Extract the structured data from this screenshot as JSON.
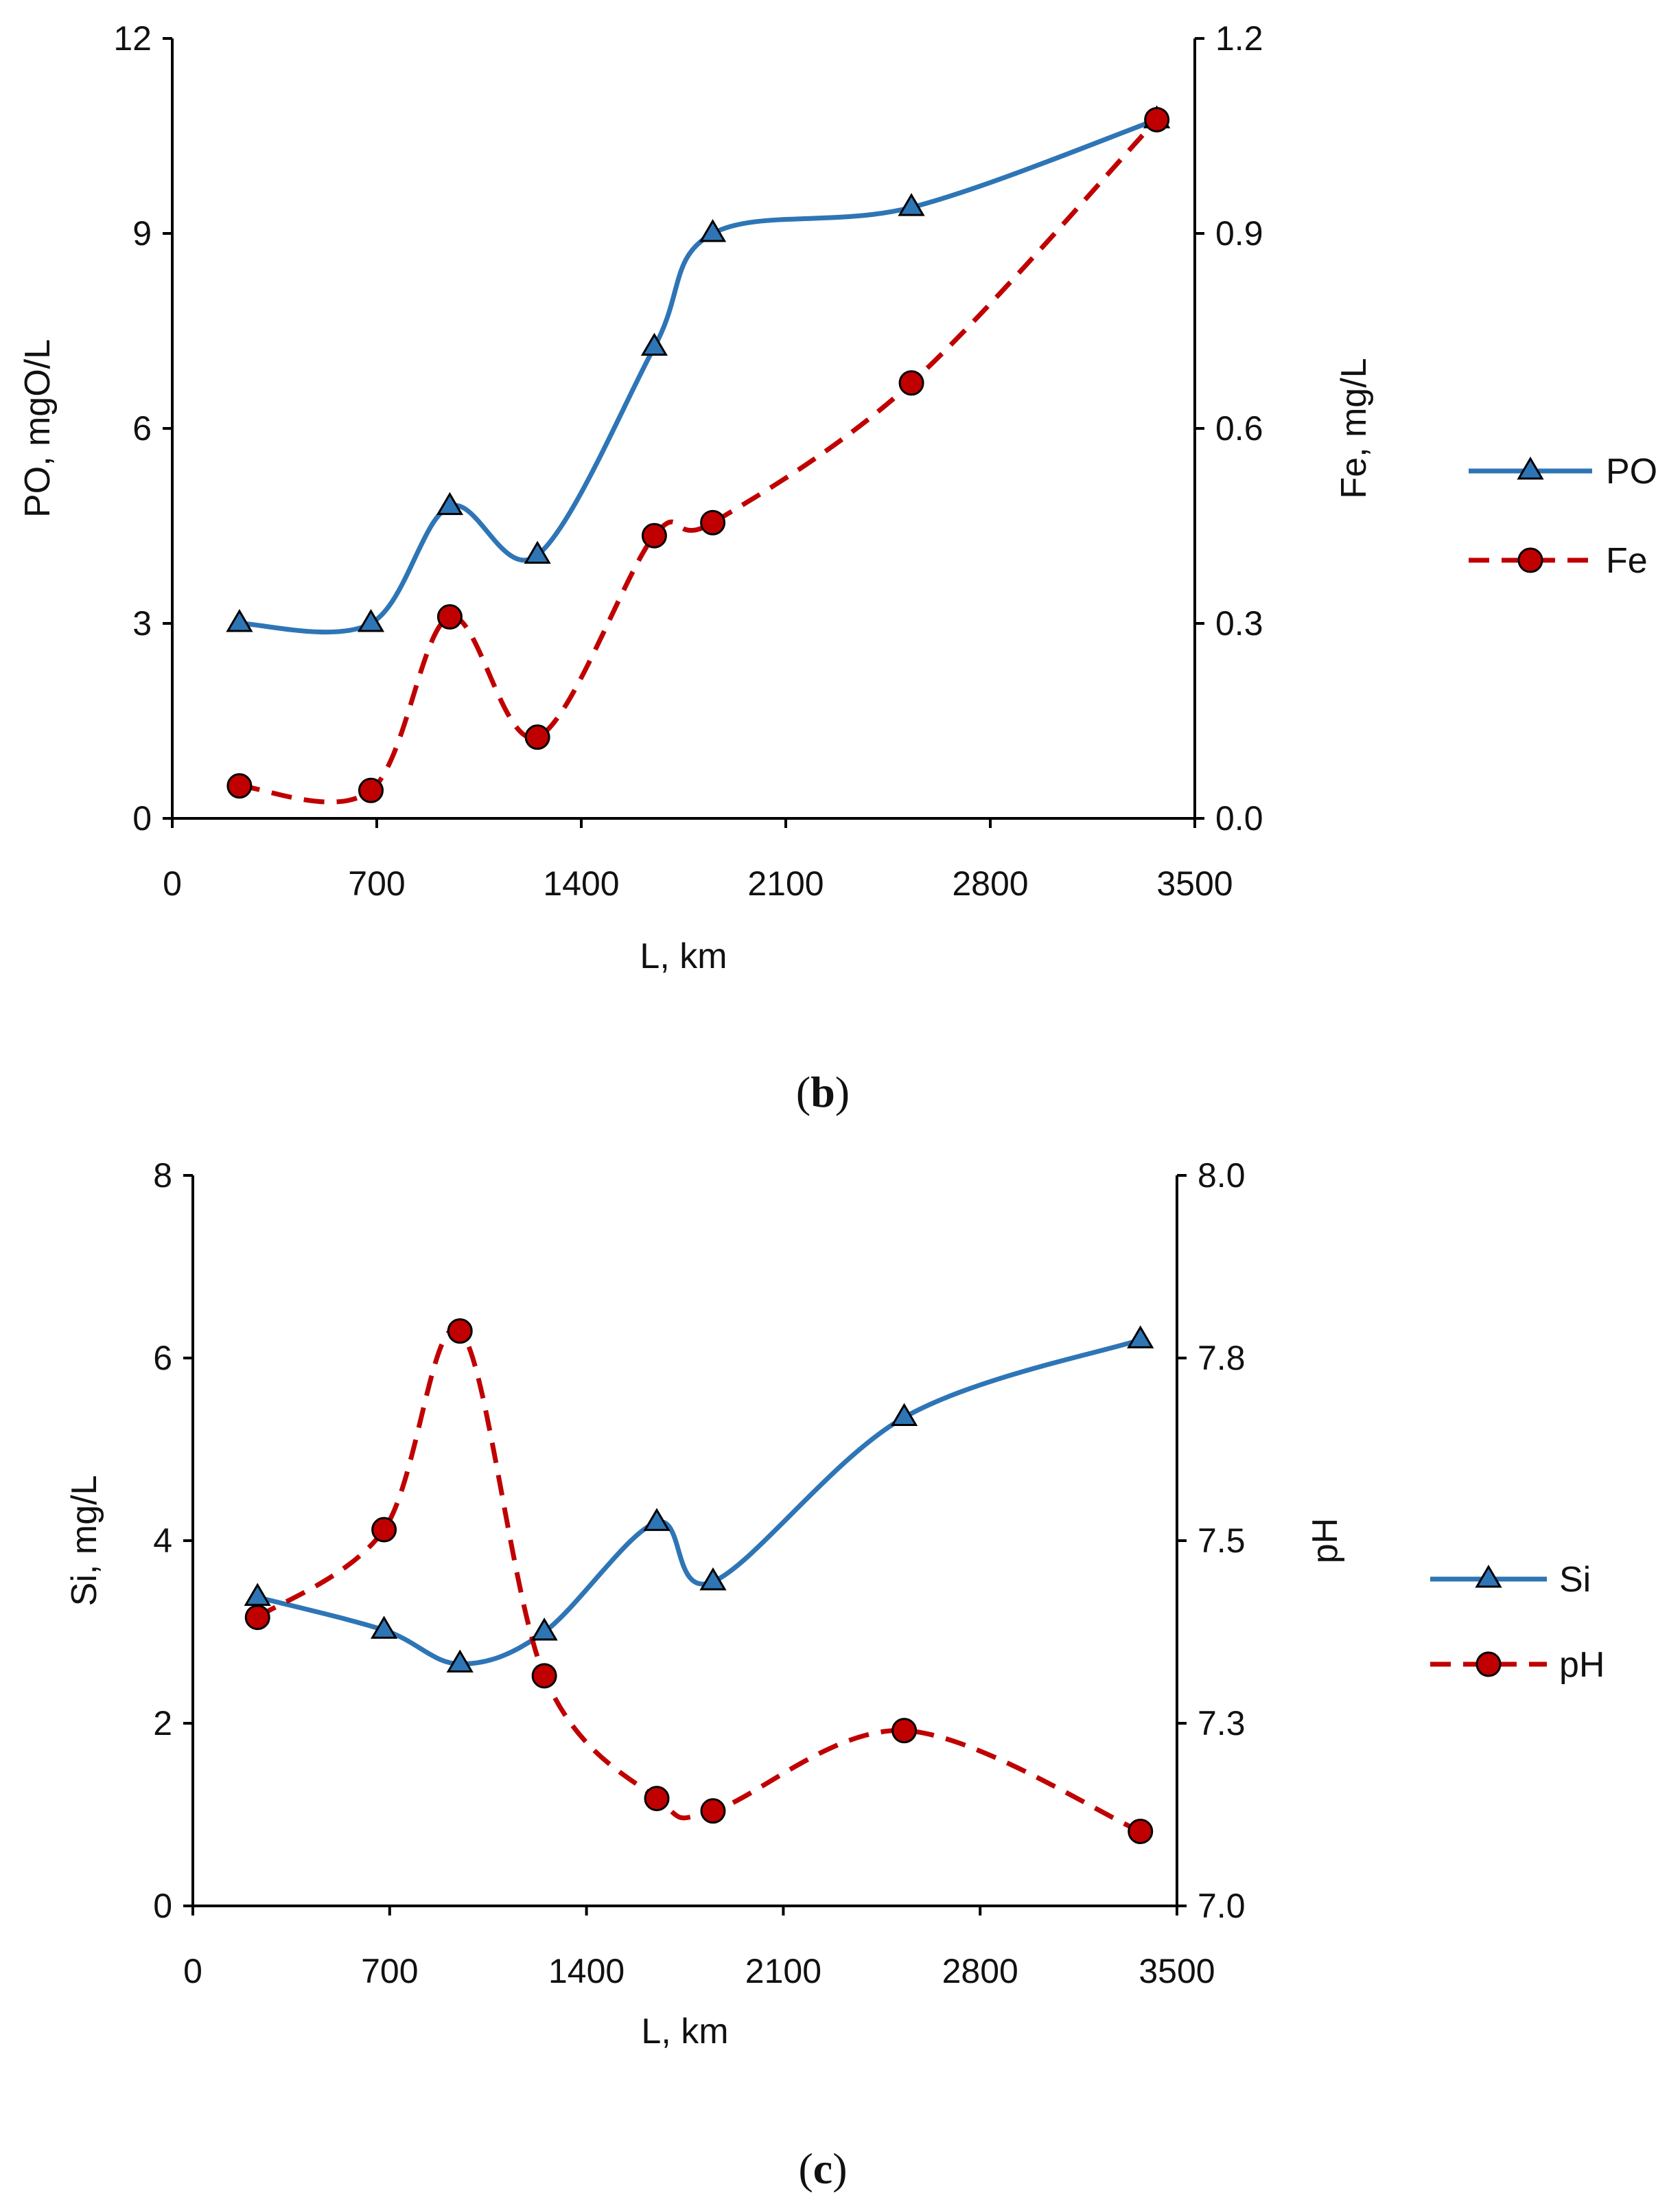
{
  "chart_data": [
    {
      "type": "line",
      "caption": "b",
      "xlabel": "L, km",
      "ylabel_left": "PO, mgO/L",
      "ylabel_right": "Fe, mg/L",
      "xlim": [
        0,
        3500
      ],
      "ylim_left": [
        0,
        12
      ],
      "ylim_right": [
        0.0,
        1.2
      ],
      "x_ticks": [
        "0",
        "700",
        "1400",
        "2100",
        "2800",
        "3500"
      ],
      "y_ticks_left": [
        "0",
        "3",
        "6",
        "9",
        "12"
      ],
      "y_ticks_right": [
        "0.0",
        "0.3",
        "0.6",
        "0.9",
        "1.2"
      ],
      "grid": false,
      "legend_position": "right",
      "series": [
        {
          "name": "PO",
          "axis": "left",
          "style": "solid",
          "marker": "triangle",
          "color": "#2E75B6",
          "marker_fill": "#2E75B6",
          "x": [
            230,
            680,
            950,
            1250,
            1650,
            1850,
            2530,
            3370
          ],
          "values": [
            3.0,
            3.0,
            4.8,
            4.05,
            7.25,
            9.0,
            9.4,
            10.75
          ]
        },
        {
          "name": "Fe",
          "axis": "right",
          "style": "dashed",
          "marker": "circle",
          "color": "#C00000",
          "marker_fill": "#C00000",
          "x": [
            230,
            680,
            950,
            1250,
            1650,
            1850,
            2530,
            3370
          ],
          "values": [
            0.05,
            0.043,
            0.31,
            0.125,
            0.435,
            0.455,
            0.67,
            1.075
          ]
        }
      ]
    },
    {
      "type": "line",
      "caption": "c",
      "xlabel": "L, km",
      "ylabel_left": "Si, mg/L",
      "ylabel_right": "pH",
      "xlim": [
        0,
        3500
      ],
      "ylim_left": [
        0,
        8
      ],
      "ylim_right": [
        7.0,
        8.0
      ],
      "x_ticks": [
        "0",
        "700",
        "1400",
        "2100",
        "2800",
        "3500"
      ],
      "y_ticks_left": [
        "0",
        "2",
        "4",
        "6",
        "8"
      ],
      "y_ticks_right": [
        "7.0",
        "7.3",
        "7.5",
        "7.8",
        "8.0"
      ],
      "grid": false,
      "legend_position": "right",
      "series": [
        {
          "name": "Si",
          "axis": "left",
          "style": "solid",
          "marker": "triangle",
          "color": "#2E75B6",
          "marker_fill": "#2E75B6",
          "x": [
            230,
            680,
            950,
            1250,
            1650,
            1850,
            2530,
            3370
          ],
          "values": [
            3.38,
            3.02,
            2.65,
            3.0,
            4.2,
            3.55,
            5.35,
            6.2
          ]
        },
        {
          "name": "pH",
          "axis": "right",
          "style": "dashed",
          "marker": "circle",
          "color": "#C00000",
          "marker_fill": "#C00000",
          "x": [
            230,
            680,
            950,
            1250,
            1650,
            1850,
            2530,
            3370
          ],
          "values": [
            7.395,
            7.515,
            7.787,
            7.315,
            7.147,
            7.13,
            7.24,
            7.102
          ]
        }
      ]
    }
  ]
}
